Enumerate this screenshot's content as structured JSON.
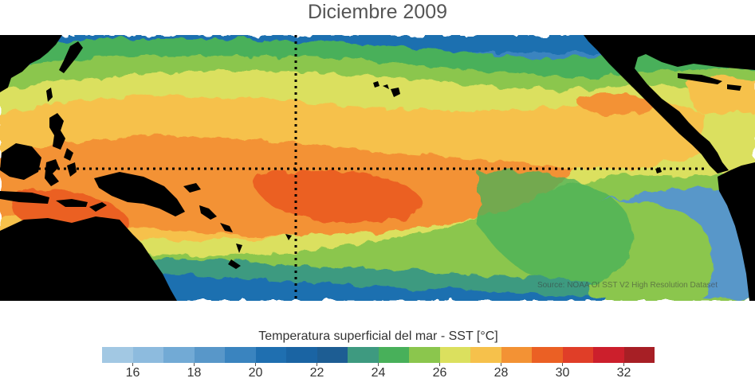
{
  "title": "Diciembre 2009",
  "source_note": "Source: NOAA OI SST V2 High Resolution Dataset",
  "colorbar": {
    "title": "Temperatura superficial del mar - SST  [°C]",
    "colors": [
      "#a2c8e3",
      "#8dbbde",
      "#72aad5",
      "#5897c9",
      "#3a84bf",
      "#1f6fb0",
      "#1a64a3",
      "#1d5d93",
      "#3e9a80",
      "#48b05a",
      "#8bc64d",
      "#dbe05e",
      "#f6c14b",
      "#f39234",
      "#eb6024",
      "#e03e28",
      "#cc1f2c",
      "#a71f25"
    ],
    "ticks": [
      {
        "label": "16",
        "frac": 0.0556
      },
      {
        "label": "18",
        "frac": 0.1667
      },
      {
        "label": "20",
        "frac": 0.2778
      },
      {
        "label": "22",
        "frac": 0.3889
      },
      {
        "label": "24",
        "frac": 0.5
      },
      {
        "label": "26",
        "frac": 0.6111
      },
      {
        "label": "28",
        "frac": 0.7222
      },
      {
        "label": "30",
        "frac": 0.8333
      },
      {
        "label": "32",
        "frac": 0.9444
      }
    ]
  }
}
